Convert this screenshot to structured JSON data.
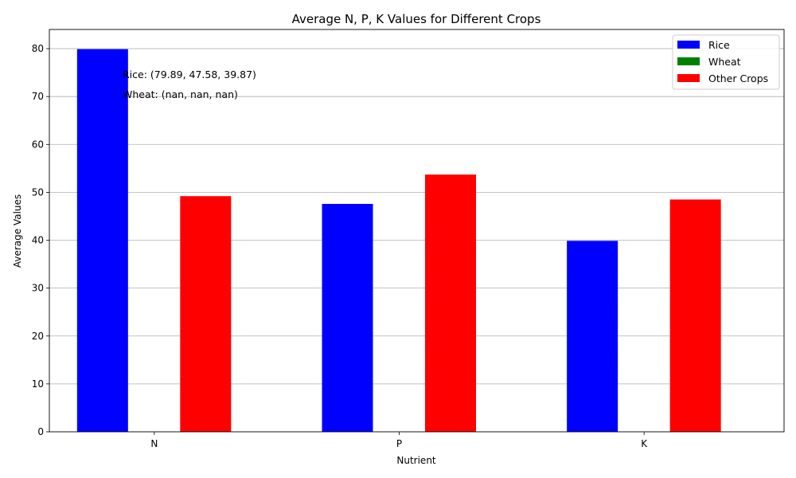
{
  "chart_data": {
    "type": "bar",
    "title": "Average N, P, K Values for Different Crops",
    "xlabel": "Nutrient",
    "ylabel": "Average Values",
    "categories": [
      "N",
      "P",
      "K"
    ],
    "ylim": [
      0,
      84
    ],
    "yticks": [
      0,
      10,
      20,
      30,
      40,
      50,
      60,
      70,
      80
    ],
    "ytick_labels": [
      "0",
      "10",
      "20",
      "30",
      "40",
      "50",
      "60",
      "70",
      "80"
    ],
    "grid": "y",
    "legend_position": "top-right",
    "series": [
      {
        "name": "Rice",
        "color": "#0000ff",
        "values": [
          79.89,
          47.58,
          39.87
        ]
      },
      {
        "name": "Wheat",
        "color": "#008000",
        "values": [
          null,
          null,
          null
        ]
      },
      {
        "name": "Other Crops",
        "color": "#ff0000",
        "values": [
          49.2,
          53.7,
          48.5
        ]
      }
    ],
    "annotations": [
      "Rice: (79.89, 47.58, 39.87)",
      "Wheat: (nan, nan, nan)"
    ]
  }
}
